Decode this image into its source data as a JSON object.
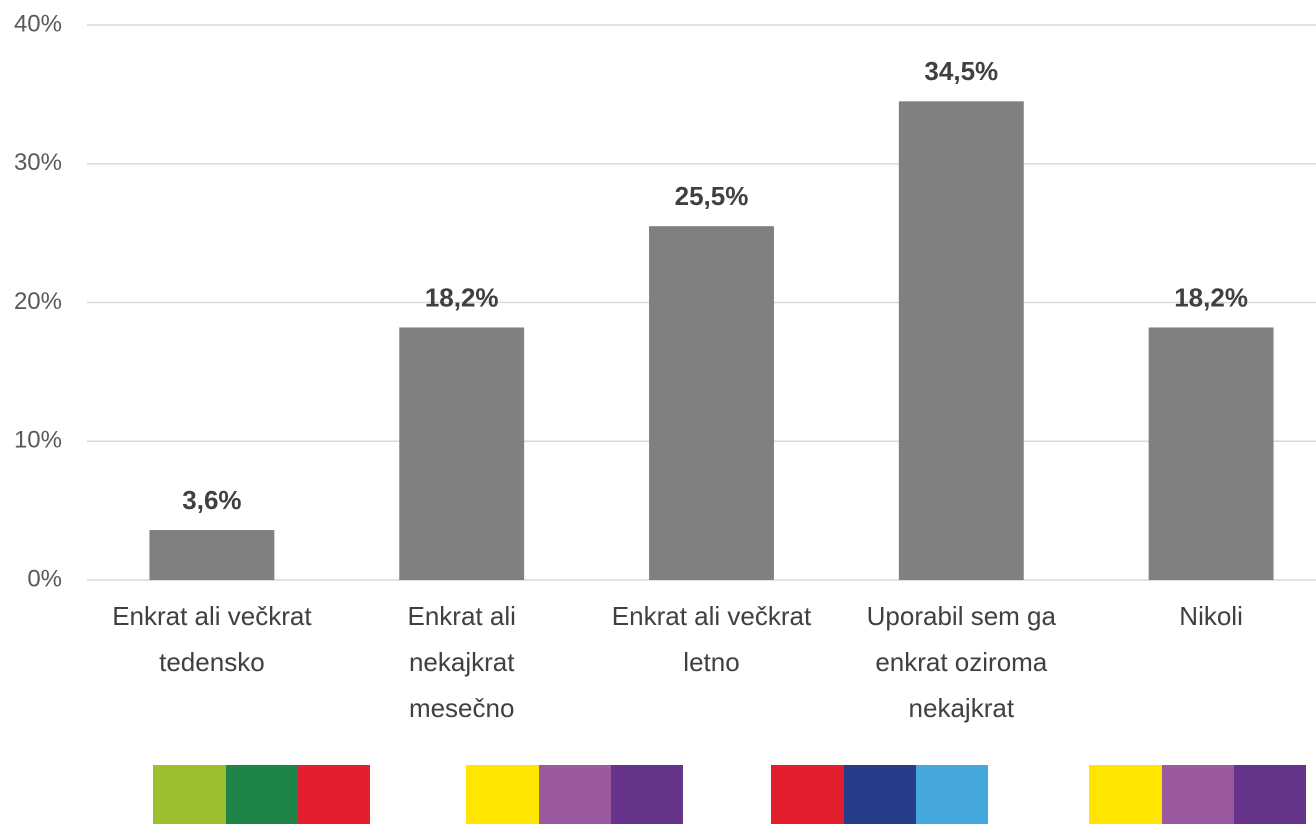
{
  "chart_data": {
    "type": "bar",
    "categories": [
      "Enkrat ali večkrat\ntedensko",
      "Enkrat ali\nnekajkrat\nmesečno",
      "Enkrat ali večkrat\nletno",
      "Uporabil sem ga\nenkrat oziroma\nnekajkrat",
      "Nikoli"
    ],
    "values": [
      3.6,
      18.2,
      25.5,
      34.5,
      18.2
    ],
    "value_labels": [
      "3,6%",
      "18,2%",
      "25,5%",
      "34,5%",
      "18,2%"
    ],
    "color": "#808080",
    "ylim": [
      0,
      40
    ],
    "yticks": [
      {
        "value": 0,
        "label": "0%"
      },
      {
        "value": 10,
        "label": "10%"
      },
      {
        "value": 20,
        "label": "20%"
      },
      {
        "value": 30,
        "label": "30%"
      },
      {
        "value": 40,
        "label": "40%"
      }
    ],
    "grid": true
  }
}
